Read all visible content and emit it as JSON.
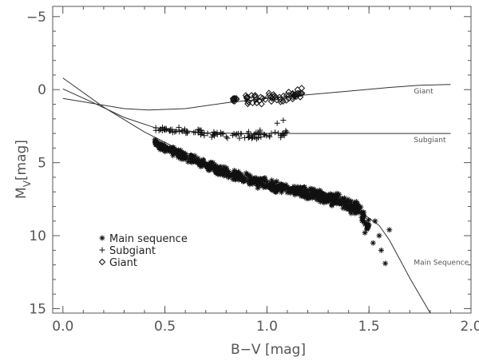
{
  "chart_data": {
    "type": "scatter",
    "xlabel": "B−V [mag]",
    "ylabel_main": "M",
    "ylabel_sub": "V",
    "ylabel_unit": "[mag]",
    "xlim": [
      -0.05,
      2.0
    ],
    "ylim": [
      15.3,
      -5.7
    ],
    "y_inverted": true,
    "x_ticks": [
      0.0,
      0.5,
      1.0,
      1.5,
      2.0
    ],
    "x_tick_labels": [
      "0.0",
      "0.5",
      "1.0",
      "1.5",
      "2.0"
    ],
    "y_ticks": [
      -5,
      0,
      5,
      10,
      15
    ],
    "y_tick_labels": [
      "−5",
      "0",
      "5",
      "10",
      "15"
    ],
    "grid": false,
    "legend_position": "bottom-left",
    "legend": [
      {
        "label": "Main sequence",
        "marker": "asterisk"
      },
      {
        "label": "Subgiant",
        "marker": "plus"
      },
      {
        "label": "Giant",
        "marker": "diamond"
      }
    ],
    "curves": [
      {
        "label": "Giant",
        "points": [
          [
            0.0,
            0.6
          ],
          [
            0.15,
            0.95
          ],
          [
            0.3,
            1.3
          ],
          [
            0.42,
            1.4
          ],
          [
            0.6,
            1.3
          ],
          [
            0.8,
            0.9
          ],
          [
            1.0,
            0.6
          ],
          [
            1.2,
            0.35
          ],
          [
            1.4,
            0.1
          ],
          [
            1.6,
            -0.15
          ],
          [
            1.75,
            -0.3
          ],
          [
            1.9,
            -0.35
          ]
        ],
        "label_at": [
          1.72,
          0.25
        ]
      },
      {
        "label": "Subgiant",
        "points": [
          [
            0.0,
            -0.05
          ],
          [
            0.15,
            0.9
          ],
          [
            0.3,
            1.9
          ],
          [
            0.45,
            2.6
          ],
          [
            0.55,
            2.75
          ],
          [
            0.7,
            2.95
          ],
          [
            0.9,
            3.0
          ],
          [
            1.2,
            3.0
          ],
          [
            1.5,
            3.0
          ],
          [
            1.9,
            3.0
          ]
        ],
        "label_at": [
          1.72,
          3.6
        ]
      },
      {
        "label": "Main Sequence",
        "points": [
          [
            0.0,
            -0.8
          ],
          [
            0.2,
            1.2
          ],
          [
            0.4,
            2.9
          ],
          [
            0.6,
            4.3
          ],
          [
            0.8,
            5.6
          ],
          [
            1.0,
            6.6
          ],
          [
            1.2,
            7.4
          ],
          [
            1.35,
            7.9
          ],
          [
            1.45,
            8.3
          ],
          [
            1.55,
            9.3
          ],
          [
            1.6,
            10.3
          ],
          [
            1.7,
            12.9
          ],
          [
            1.8,
            15.3
          ]
        ],
        "label_at": [
          1.72,
          12.0
        ]
      }
    ],
    "series": [
      {
        "name": "Main sequence",
        "marker": "asterisk",
        "band": {
          "x": [
            0.45,
            0.6,
            0.8,
            1.0,
            1.2,
            1.35,
            1.45,
            1.5
          ],
          "y": [
            3.7,
            4.6,
            5.7,
            6.5,
            7.1,
            7.6,
            8.2,
            9.3
          ],
          "spread": [
            0.3,
            0.35,
            0.4,
            0.45,
            0.45,
            0.5,
            0.55,
            0.7
          ]
        },
        "scattered": [
          [
            1.55,
            10.0
          ],
          [
            1.56,
            11.0
          ],
          [
            1.58,
            11.9
          ],
          [
            1.53,
            9.0
          ],
          [
            1.6,
            9.6
          ],
          [
            1.52,
            10.5
          ],
          [
            1.48,
            9.8
          ]
        ]
      },
      {
        "name": "Subgiant",
        "marker": "plus",
        "band": {
          "x": [
            0.45,
            0.55,
            0.65,
            0.75,
            0.85,
            0.95,
            1.05,
            1.1
          ],
          "y": [
            2.7,
            2.75,
            2.9,
            3.05,
            3.1,
            3.1,
            3.05,
            3.0
          ],
          "spread": [
            0.15,
            0.2,
            0.25,
            0.3,
            0.35,
            0.35,
            0.3,
            0.25
          ]
        },
        "scattered": [
          [
            1.05,
            2.3
          ],
          [
            1.08,
            2.1
          ]
        ]
      },
      {
        "name": "Giant",
        "marker": "diamond",
        "band": {
          "x": [
            0.8,
            0.88,
            0.95,
            1.02,
            1.1,
            1.18
          ],
          "y": [
            0.7,
            0.6,
            0.65,
            0.55,
            0.45,
            0.3
          ],
          "spread": [
            0.25,
            0.4,
            0.45,
            0.4,
            0.35,
            0.3
          ]
        },
        "scattered": [
          [
            1.17,
            -0.1
          ],
          [
            1.15,
            0.0
          ]
        ]
      }
    ]
  }
}
